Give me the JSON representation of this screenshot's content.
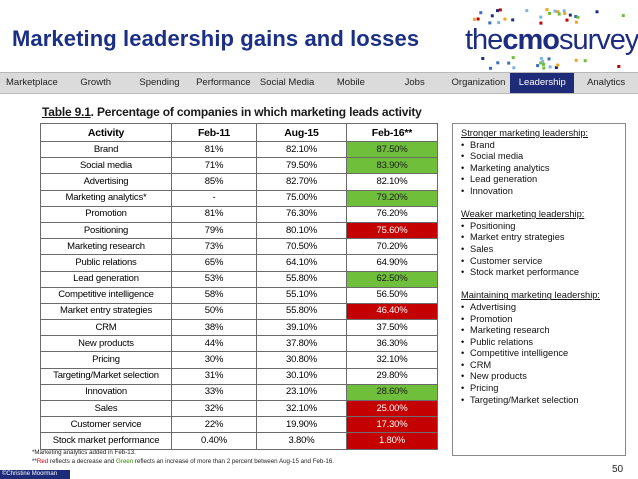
{
  "slide": {
    "title": "Marketing leadership gains and losses",
    "page_number": "50",
    "copyright": "©Christine Moorman"
  },
  "logo": {
    "the": "the",
    "cmo": "cmo",
    "survey": "survey"
  },
  "nav": {
    "tabs": [
      "Marketplace",
      "Growth",
      "Spending",
      "Performance",
      "Social Media",
      "Mobile",
      "Jobs",
      "Organization",
      "Leadership",
      "Analytics"
    ],
    "active": "Leadership"
  },
  "colors": {
    "brand_blue": "#1a2f86",
    "nav_active": "#1e2b78",
    "increase_green": "#6fbf3b",
    "decrease_red": "#c40000"
  },
  "table": {
    "caption_label": "Table 9.1",
    "caption_text": ".  Percentage of companies in which marketing leads activity",
    "headers": [
      "Activity",
      "Feb-11",
      "Aug-15",
      "Feb-16**"
    ],
    "rows": [
      {
        "activity": "Brand",
        "feb11": "81%",
        "aug15": "82.10%",
        "feb16": "87.50%",
        "change": "green"
      },
      {
        "activity": "Social media",
        "feb11": "71%",
        "aug15": "79.50%",
        "feb16": "83.90%",
        "change": "green"
      },
      {
        "activity": "Advertising",
        "feb11": "85%",
        "aug15": "82.70%",
        "feb16": "82.10%",
        "change": "none"
      },
      {
        "activity": "Marketing analytics*",
        "feb11": "-",
        "aug15": "75.00%",
        "feb16": "79.20%",
        "change": "green"
      },
      {
        "activity": "Promotion",
        "feb11": "81%",
        "aug15": "76.30%",
        "feb16": "76.20%",
        "change": "none"
      },
      {
        "activity": "Positioning",
        "feb11": "79%",
        "aug15": "80.10%",
        "feb16": "75.60%",
        "change": "red"
      },
      {
        "activity": "Marketing research",
        "feb11": "73%",
        "aug15": "70.50%",
        "feb16": "70.20%",
        "change": "none"
      },
      {
        "activity": "Public relations",
        "feb11": "65%",
        "aug15": "64.10%",
        "feb16": "64.90%",
        "change": "none"
      },
      {
        "activity": "Lead generation",
        "feb11": "53%",
        "aug15": "55.80%",
        "feb16": "62.50%",
        "change": "green"
      },
      {
        "activity": "Competitive intelligence",
        "feb11": "58%",
        "aug15": "55.10%",
        "feb16": "56.50%",
        "change": "none"
      },
      {
        "activity": "Market entry strategies",
        "feb11": "50%",
        "aug15": "55.80%",
        "feb16": "46.40%",
        "change": "red"
      },
      {
        "activity": "CRM",
        "feb11": "38%",
        "aug15": "39.10%",
        "feb16": "37.50%",
        "change": "none"
      },
      {
        "activity": "New products",
        "feb11": "44%",
        "aug15": "37.80%",
        "feb16": "36.30%",
        "change": "none"
      },
      {
        "activity": "Pricing",
        "feb11": "30%",
        "aug15": "30.80%",
        "feb16": "32.10%",
        "change": "none"
      },
      {
        "activity": "Targeting/Market selection",
        "feb11": "31%",
        "aug15": "30.10%",
        "feb16": "29.80%",
        "change": "none"
      },
      {
        "activity": "Innovation",
        "feb11": "33%",
        "aug15": "23.10%",
        "feb16": "28.60%",
        "change": "green"
      },
      {
        "activity": "Sales",
        "feb11": "32%",
        "aug15": "32.10%",
        "feb16": "25.00%",
        "change": "red"
      },
      {
        "activity": "Customer service",
        "feb11": "22%",
        "aug15": "19.90%",
        "feb16": "17.30%",
        "change": "red"
      },
      {
        "activity": "Stock market performance",
        "feb11": "0.40%",
        "aug15": "3.80%",
        "feb16": "1.80%",
        "change": "red"
      }
    ]
  },
  "footnotes": {
    "line1": "*Marketing analytics added in Feb-13.",
    "line2_prefix": "**",
    "line2_red": "Red",
    "line2_mid": " reflects a decrease and ",
    "line2_green": "Green",
    "line2_suffix": " reflects an increase of more than 2 percent between Aug-15 and Feb-16."
  },
  "sidebar": {
    "groups": [
      {
        "heading": "Stronger marketing leadership:",
        "items": [
          "Brand",
          "Social media",
          "Marketing analytics",
          "Lead generation",
          "Innovation"
        ]
      },
      {
        "heading": "Weaker marketing leadership:",
        "items": [
          "Positioning",
          "Market entry strategies",
          "Sales",
          "Customer service",
          "Stock market performance"
        ]
      },
      {
        "heading": "Maintaining marketing leadership:",
        "items": [
          "Advertising",
          "Promotion",
          "Marketing research",
          "Public relations",
          "Competitive intelligence",
          "CRM",
          "New products",
          "Pricing",
          "Targeting/Market selection"
        ]
      }
    ]
  }
}
